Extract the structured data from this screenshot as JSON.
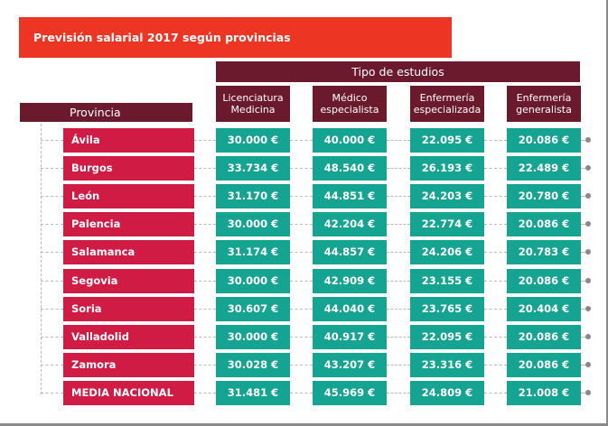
{
  "chart_data": {
    "type": "table",
    "title": "Previsión salarial 2017 según provincias",
    "group_header": "Tipo de estudios",
    "row_header": "Provincia",
    "columns": [
      "Licenciatura Medicina",
      "Médico especialista",
      "Enfermería especializada",
      "Enfermería generalista"
    ],
    "column_lines": [
      [
        "Licenciatura",
        "Medicina"
      ],
      [
        "Médico",
        "especialista"
      ],
      [
        "Enfermería",
        "especializada"
      ],
      [
        "Enfermería",
        "generalista"
      ]
    ],
    "currency": "€",
    "rows": [
      {
        "provincia": "Ávila",
        "values": [
          "30.000 €",
          "40.000 €",
          "22.095 €",
          "20.086 €"
        ]
      },
      {
        "provincia": "Burgos",
        "values": [
          "33.734 €",
          "48.540 €",
          "26.193 €",
          "22.489 €"
        ]
      },
      {
        "provincia": "León",
        "values": [
          "31.170 €",
          "44.851 €",
          "24.203 €",
          "20.780 €"
        ]
      },
      {
        "provincia": "Palencia",
        "values": [
          "30.000 €",
          "42.204 €",
          "22.774 €",
          "20.086 €"
        ]
      },
      {
        "provincia": "Salamanca",
        "values": [
          "31.174 €",
          "44.857 €",
          "24.206 €",
          "20.783 €"
        ]
      },
      {
        "provincia": "Segovia",
        "values": [
          "30.000 €",
          "42.909 €",
          "23.155 €",
          "20.086 €"
        ]
      },
      {
        "provincia": "Soria",
        "values": [
          "30.607 €",
          "44.040 €",
          "23.765 €",
          "20.404 €"
        ]
      },
      {
        "provincia": "Valladolid",
        "values": [
          "30.000 €",
          "40.917 €",
          "22.095 €",
          "20.086 €"
        ]
      },
      {
        "provincia": "Zamora",
        "values": [
          "30.028 €",
          "43.207 €",
          "23.316 €",
          "20.086 €"
        ]
      },
      {
        "provincia": "MEDIA NACIONAL",
        "values": [
          "31.481 €",
          "45.969 €",
          "24.809 €",
          "21.008 €"
        ]
      }
    ]
  },
  "colors": {
    "title_bg": "#ed3524",
    "header_bg": "#6b1a2d",
    "province_bg": "#d01b45",
    "value_bg": "#15a491"
  }
}
